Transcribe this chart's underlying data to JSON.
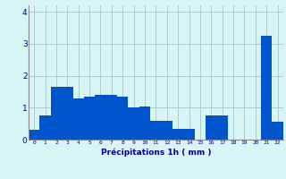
{
  "values": [
    0.3,
    0.75,
    1.65,
    1.65,
    1.3,
    1.35,
    1.4,
    1.4,
    1.35,
    1.0,
    1.05,
    0.6,
    0.6,
    0.35,
    0.35,
    0.0,
    0.75,
    0.75,
    0.0,
    0.0,
    0.0,
    3.25,
    0.55
  ],
  "xlabel": "Précipitations 1h ( mm )",
  "ylim": [
    0,
    4.2
  ],
  "yticks": [
    0,
    1,
    2,
    3,
    4
  ],
  "xtick_labels": [
    "0",
    "1",
    "2",
    "3",
    "4",
    "5",
    "6",
    "7",
    "8",
    "9",
    "10",
    "11",
    "12",
    "13",
    "14",
    "15",
    "16",
    "17",
    "18",
    "19",
    "20",
    "21",
    "22"
  ],
  "bar_color": "#0055cc",
  "background_color": "#d8f4f4",
  "grid_color": "#aacccc",
  "tick_color": "#000099",
  "label_color": "#000099"
}
